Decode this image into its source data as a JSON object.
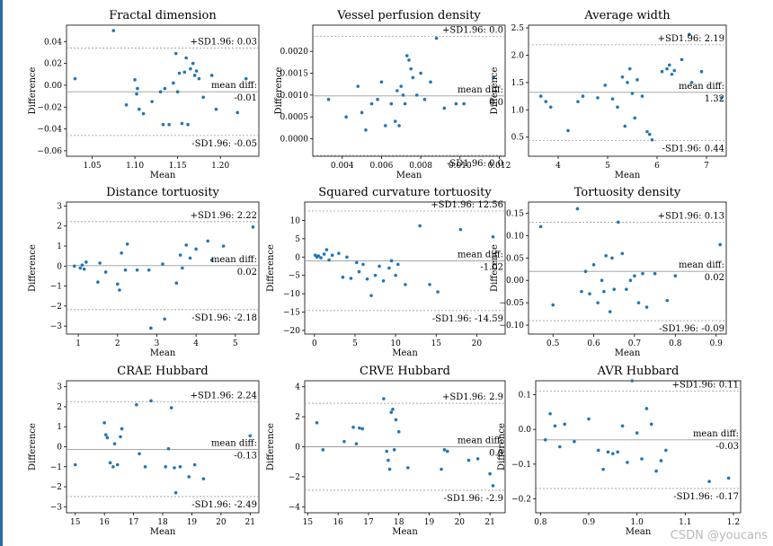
{
  "figure": {
    "watermark": "CSDN @youcans",
    "point_color": "#1f77b4",
    "mean_line_color": "#9a9a9a",
    "sd_line_color": "#9a9a9a"
  },
  "chart_data": [
    {
      "type": "scatter",
      "title": "Fractal dimension",
      "xlabel": "Mean",
      "ylabel": "Difference",
      "xlim": [
        1.02,
        1.245
      ],
      "ylim": [
        -0.065,
        0.055
      ],
      "xticks": [
        1.05,
        1.1,
        1.15,
        1.2
      ],
      "xtick_labels": [
        "1.05",
        "1.10",
        "1.15",
        "1.20"
      ],
      "yticks": [
        -0.06,
        -0.04,
        -0.02,
        0.0,
        0.02,
        0.04
      ],
      "ytick_labels": [
        "−0.06",
        "−0.04",
        "−0.02",
        "0.00",
        "0.02",
        "0.04"
      ],
      "mean_diff": -0.006,
      "upper_sd": 0.034,
      "lower_sd": -0.046,
      "label_upper": "+SD1.96: 0.03",
      "label_mean_title": "mean diff:",
      "label_mean_value": "-0.01",
      "label_lower": "-SD1.96: -0.05",
      "x": [
        1.03,
        1.075,
        1.09,
        1.1,
        1.102,
        1.103,
        1.105,
        1.11,
        1.12,
        1.13,
        1.133,
        1.135,
        1.14,
        1.145,
        1.148,
        1.15,
        1.152,
        1.155,
        1.158,
        1.16,
        1.162,
        1.165,
        1.168,
        1.17,
        1.172,
        1.175,
        1.18,
        1.19,
        1.195,
        1.22,
        1.23
      ],
      "y": [
        0.006,
        0.05,
        -0.018,
        0.005,
        -0.008,
        -0.003,
        -0.022,
        -0.026,
        -0.015,
        -0.006,
        -0.036,
        -0.003,
        -0.036,
        0.002,
        0.029,
        -0.006,
        0.011,
        -0.035,
        0.012,
        0.025,
        -0.036,
        0.015,
        0.02,
        0.009,
        0.013,
        0.006,
        -0.011,
        0.009,
        -0.022,
        -0.025,
        0.006
      ]
    },
    {
      "type": "scatter",
      "title": "Vessel perfusion density",
      "xlabel": "Mean",
      "ylabel": "Difference",
      "xlim": [
        0.0025,
        0.0123
      ],
      "ylim": [
        -0.0004,
        0.0026
      ],
      "xticks": [
        0.004,
        0.006,
        0.008,
        0.01,
        0.012
      ],
      "xtick_labels": [
        "0.004",
        "0.006",
        "0.008",
        "0.010",
        "0.012"
      ],
      "yticks": [
        0.0,
        0.0005,
        0.001,
        0.0015,
        0.002
      ],
      "ytick_labels": [
        "0.0000",
        "0.0005",
        "0.0010",
        "0.0015",
        "0.0020"
      ],
      "mean_diff": 0.00098,
      "upper_sd": 0.00234,
      "lower_sd": -0.00038,
      "label_upper": "+SD1.96: 0.0",
      "label_mean_title": "mean diff:",
      "label_mean_value": "0.0",
      "label_lower": "-SD1.96: 0.0",
      "x": [
        0.0033,
        0.0042,
        0.0048,
        0.005,
        0.0052,
        0.0055,
        0.0058,
        0.006,
        0.0062,
        0.0065,
        0.0067,
        0.0068,
        0.0069,
        0.007,
        0.0071,
        0.0072,
        0.0073,
        0.0074,
        0.0075,
        0.0076,
        0.0078,
        0.008,
        0.0082,
        0.0085,
        0.0088,
        0.0092,
        0.0098,
        0.0102,
        0.0117
      ],
      "y": [
        0.0009,
        0.0005,
        0.0012,
        0.0006,
        0.0002,
        0.0008,
        0.0009,
        0.0013,
        0.0003,
        0.0008,
        0.0004,
        0.0011,
        0.0003,
        0.0012,
        0.001,
        0.0008,
        0.0019,
        0.0018,
        0.0016,
        0.0014,
        0.001,
        0.0015,
        0.0009,
        0.0013,
        0.0023,
        0.0007,
        0.0008,
        0.0008,
        0.0014
      ]
    },
    {
      "type": "scatter",
      "title": "Average width",
      "xlabel": "Mean",
      "ylabel": "Difference",
      "xlim": [
        3.4,
        7.4
      ],
      "ylim": [
        0.15,
        2.55
      ],
      "xticks": [
        4,
        5,
        6,
        7
      ],
      "xtick_labels": [
        "4",
        "5",
        "6",
        "7"
      ],
      "yticks": [
        0.5,
        1.0,
        1.5,
        2.0,
        2.5
      ],
      "ytick_labels": [
        "0.5",
        "1.0",
        "1.5",
        "2.0",
        "2.5"
      ],
      "mean_diff": 1.32,
      "upper_sd": 2.19,
      "lower_sd": 0.44,
      "label_upper": "+SD1.96: 2.19",
      "label_mean_title": "mean diff:",
      "label_mean_value": "1.32",
      "label_lower": "-SD1.96: 0.44",
      "x": [
        3.65,
        3.75,
        3.85,
        4.2,
        4.4,
        4.5,
        4.8,
        4.95,
        5.1,
        5.2,
        5.3,
        5.35,
        5.4,
        5.45,
        5.5,
        5.55,
        5.6,
        5.7,
        5.8,
        5.85,
        5.9,
        6.1,
        6.2,
        6.25,
        6.3,
        6.35,
        6.5,
        6.65,
        6.7,
        6.9,
        7.3
      ],
      "y": [
        1.25,
        1.15,
        1.05,
        0.62,
        1.15,
        1.25,
        1.22,
        1.45,
        1.2,
        1.05,
        1.6,
        0.7,
        1.5,
        1.75,
        1.3,
        0.85,
        1.55,
        1.25,
        0.6,
        0.55,
        0.45,
        1.7,
        1.75,
        1.82,
        1.65,
        1.72,
        1.92,
        2.38,
        1.5,
        1.7,
        1.22
      ]
    },
    {
      "type": "scatter",
      "title": "Distance tortuosity",
      "xlabel": "Mean",
      "ylabel": "Difference",
      "xlim": [
        0.7,
        5.6
      ],
      "ylim": [
        -3.4,
        3.2
      ],
      "xticks": [
        1,
        2,
        3,
        4,
        5
      ],
      "xtick_labels": [
        "1",
        "2",
        "3",
        "4",
        "5"
      ],
      "yticks": [
        -3,
        -2,
        -1,
        0,
        1,
        2,
        3
      ],
      "ytick_labels": [
        "−3",
        "−2",
        "−1",
        "0",
        "1",
        "2",
        "3"
      ],
      "mean_diff": 0.02,
      "upper_sd": 2.22,
      "lower_sd": -2.18,
      "label_upper": "+SD1.96: 2.22",
      "label_mean_title": "mean diff:",
      "label_mean_value": "0.02",
      "label_lower": "-SD1.96: -2.18",
      "x": [
        0.9,
        1.05,
        1.1,
        1.15,
        1.2,
        1.5,
        1.55,
        1.7,
        2.0,
        2.05,
        2.1,
        2.2,
        2.25,
        2.5,
        2.8,
        2.85,
        3.15,
        3.2,
        3.5,
        3.6,
        3.65,
        3.75,
        3.85,
        4.0,
        4.3,
        4.4,
        4.7,
        5.45
      ],
      "y": [
        0.0,
        -0.1,
        0.05,
        -0.15,
        0.2,
        -0.8,
        0.15,
        -0.3,
        -0.9,
        -1.2,
        0.65,
        -0.2,
        1.1,
        -0.2,
        -0.2,
        -3.1,
        0.1,
        -2.65,
        -0.85,
        0.55,
        -0.1,
        1.05,
        0.4,
        0.85,
        1.25,
        0.3,
        1.0,
        1.95
      ]
    },
    {
      "type": "scatter",
      "title": "Squared curvature tortuosity",
      "xlabel": "Mean",
      "ylabel": "Difference",
      "xlim": [
        -1.2,
        23.5
      ],
      "ylim": [
        -21,
        15
      ],
      "xticks": [
        0,
        5,
        10,
        15,
        20
      ],
      "xtick_labels": [
        "0",
        "5",
        "10",
        "15",
        "20"
      ],
      "yticks": [
        -20,
        -15,
        -10,
        -5,
        0,
        5,
        10
      ],
      "ytick_labels": [
        "−20",
        "−15",
        "−10",
        "−5",
        "0",
        "5",
        "10"
      ],
      "mean_diff": -1.02,
      "upper_sd": 12.56,
      "lower_sd": -14.59,
      "label_upper": "+SD1.96: 12.56",
      "label_mean_title": "mean diff:",
      "label_mean_value": "-1.02",
      "label_lower": "-SD1.96: -14.59",
      "x": [
        0.1,
        0.3,
        0.5,
        0.8,
        1.2,
        1.5,
        1.8,
        2.2,
        3.0,
        3.5,
        4.0,
        4.5,
        5.2,
        5.5,
        6.0,
        6.5,
        7.0,
        7.5,
        8.0,
        8.5,
        9.2,
        9.5,
        10.0,
        10.3,
        11.2,
        13.0,
        14.2,
        15.2,
        18.0,
        22.0
      ],
      "y": [
        0.5,
        0.0,
        0.3,
        -0.2,
        0.8,
        2.0,
        -0.8,
        0.5,
        1.0,
        -5.5,
        0.0,
        -5.8,
        -1.5,
        -4.0,
        -2.0,
        -6.0,
        -10.5,
        -5.0,
        -2.5,
        -6.5,
        -3.0,
        -1.0,
        -5.0,
        -2.0,
        -7.5,
        8.5,
        -7.5,
        -9.5,
        7.5,
        5.5
      ]
    },
    {
      "type": "scatter",
      "title": "Tortuosity density",
      "xlabel": "Mean",
      "ylabel": "Difference",
      "xlim": [
        0.44,
        0.925
      ],
      "ylim": [
        -0.12,
        0.175
      ],
      "xticks": [
        0.5,
        0.6,
        0.7,
        0.8,
        0.9
      ],
      "xtick_labels": [
        "0.5",
        "0.6",
        "0.7",
        "0.8",
        "0.9"
      ],
      "yticks": [
        -0.1,
        -0.05,
        0.0,
        0.05,
        0.1,
        0.15
      ],
      "ytick_labels": [
        "−0.10",
        "−0.05",
        "0.00",
        "0.05",
        "0.10",
        "0.15"
      ],
      "mean_diff": 0.02,
      "upper_sd": 0.13,
      "lower_sd": -0.09,
      "label_upper": "+SD1.96: 0.13",
      "label_mean_title": "mean diff:",
      "label_mean_value": "0.02",
      "label_lower": "-SD1.96: -0.09",
      "x": [
        0.47,
        0.5,
        0.56,
        0.57,
        0.58,
        0.59,
        0.6,
        0.61,
        0.62,
        0.625,
        0.63,
        0.64,
        0.645,
        0.65,
        0.66,
        0.67,
        0.68,
        0.69,
        0.7,
        0.71,
        0.72,
        0.73,
        0.75,
        0.78,
        0.8,
        0.91
      ],
      "y": [
        0.12,
        -0.055,
        0.16,
        -0.025,
        0.02,
        -0.03,
        0.035,
        -0.05,
        0.0,
        -0.025,
        0.055,
        -0.07,
        0.05,
        -0.02,
        0.13,
        0.06,
        -0.02,
        0.0,
        0.01,
        -0.05,
        0.015,
        -0.06,
        0.015,
        -0.045,
        0.01,
        0.08
      ]
    },
    {
      "type": "scatter",
      "title": "CRAE Hubbard",
      "xlabel": "Mean",
      "ylabel": "Difference",
      "xlim": [
        14.7,
        21.3
      ],
      "ylim": [
        -3.3,
        3.3
      ],
      "xticks": [
        15,
        16,
        17,
        18,
        19,
        20,
        21
      ],
      "xtick_labels": [
        "15",
        "16",
        "17",
        "18",
        "19",
        "20",
        "21"
      ],
      "yticks": [
        -3,
        -2,
        -1,
        0,
        1,
        2,
        3
      ],
      "ytick_labels": [
        "−3",
        "−2",
        "−1",
        "0",
        "1",
        "2",
        "3"
      ],
      "mean_diff": -0.13,
      "upper_sd": 2.24,
      "lower_sd": -2.49,
      "label_upper": "+SD1.96: 2.24",
      "label_mean_title": "mean diff:",
      "label_mean_value": "-0.13",
      "label_lower": "-SD1.96: -2.49",
      "x": [
        15.0,
        16.0,
        16.05,
        16.1,
        16.2,
        16.3,
        16.35,
        16.45,
        16.55,
        16.6,
        17.1,
        17.2,
        17.4,
        17.6,
        18.1,
        18.2,
        18.3,
        18.4,
        18.45,
        18.6,
        18.9,
        19.1,
        19.4,
        21.0
      ],
      "y": [
        -0.9,
        1.2,
        0.6,
        0.45,
        -0.8,
        -1.0,
        0.15,
        -0.9,
        0.5,
        0.9,
        2.1,
        -0.35,
        -1.0,
        2.3,
        -1.0,
        -0.1,
        1.95,
        -1.05,
        -2.3,
        -1.0,
        -1.5,
        -0.9,
        -1.6,
        0.55
      ]
    },
    {
      "type": "scatter",
      "title": "CRVE Hubbard",
      "xlabel": "Mean",
      "ylabel": "Difference",
      "xlim": [
        14.9,
        21.5
      ],
      "ylim": [
        -4.4,
        4.4
      ],
      "xticks": [
        15,
        16,
        17,
        18,
        19,
        20,
        21
      ],
      "xtick_labels": [
        "15",
        "16",
        "17",
        "18",
        "19",
        "20",
        "21"
      ],
      "yticks": [
        -4,
        -2,
        0,
        2,
        4
      ],
      "ytick_labels": [
        "−4",
        "−2",
        "0",
        "2",
        "4"
      ],
      "mean_diff": 0.0,
      "upper_sd": 2.9,
      "lower_sd": -2.9,
      "label_upper": "+SD1.96: 2.9",
      "label_mean_title": "mean diff:",
      "label_mean_value": "0.0",
      "label_lower": "-SD1.96: -2.9",
      "x": [
        15.3,
        15.5,
        16.2,
        16.5,
        16.6,
        16.7,
        16.8,
        17.5,
        17.6,
        17.65,
        17.7,
        17.75,
        17.8,
        17.85,
        17.9,
        18.0,
        18.3,
        19.4,
        19.5,
        19.6,
        20.3,
        20.6,
        21.0,
        21.1
      ],
      "y": [
        1.6,
        -0.2,
        0.35,
        1.3,
        0.2,
        1.25,
        1.2,
        3.2,
        -0.3,
        -0.9,
        -1.5,
        2.3,
        2.5,
        -0.2,
        1.8,
        1.0,
        -1.4,
        -1.5,
        -0.2,
        -0.3,
        -0.9,
        -0.8,
        -1.8,
        -2.6
      ]
    },
    {
      "type": "scatter",
      "title": "AVR Hubbard",
      "xlabel": "Mean",
      "ylabel": "Difference",
      "xlim": [
        0.79,
        1.215
      ],
      "ylim": [
        -0.24,
        0.14
      ],
      "xticks": [
        0.8,
        0.9,
        1.0,
        1.1,
        1.2
      ],
      "xtick_labels": [
        "0.8",
        "0.9",
        "1.0",
        "1.1",
        "1.2"
      ],
      "yticks": [
        -0.2,
        -0.1,
        0.0,
        0.1
      ],
      "ytick_labels": [
        "−0.2",
        "−0.1",
        "0.0",
        "0.1"
      ],
      "mean_diff": -0.03,
      "upper_sd": 0.11,
      "lower_sd": -0.17,
      "label_upper": "+SD1.96: 0.11",
      "label_mean_title": "mean diff:",
      "label_mean_value": "-0.03",
      "label_lower": "-SD1.96: -0.17",
      "x": [
        0.81,
        0.82,
        0.83,
        0.84,
        0.85,
        0.87,
        0.9,
        0.92,
        0.93,
        0.94,
        0.95,
        0.96,
        0.97,
        0.98,
        0.99,
        1.0,
        1.01,
        1.02,
        1.03,
        1.04,
        1.05,
        1.06,
        1.15,
        1.19
      ],
      "y": [
        -0.03,
        0.045,
        0.01,
        -0.05,
        0.015,
        -0.035,
        0.03,
        -0.06,
        -0.115,
        -0.065,
        -0.07,
        -0.065,
        0.01,
        -0.095,
        0.14,
        -0.01,
        -0.085,
        0.06,
        0.015,
        -0.12,
        -0.09,
        -0.06,
        -0.15,
        -0.14
      ]
    }
  ]
}
